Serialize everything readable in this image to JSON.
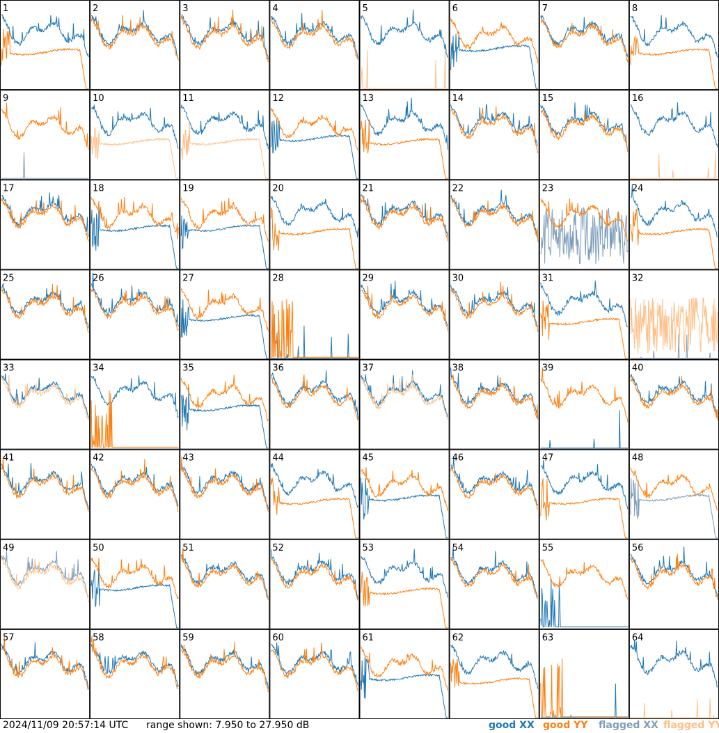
{
  "timestamp": "2024/11/09 20:57:14 UTC",
  "range_text": "range shown: 7.950 to 27.950 dB",
  "legend": [
    {
      "label": "good XX",
      "color": "#1f77b4"
    },
    {
      "label": "good YY",
      "color": "#ff7f0e"
    },
    {
      "label": "flagged XX",
      "color": "#7f9db9"
    },
    {
      "label": "flagged YY",
      "color": "#ffbf87"
    }
  ],
  "chart_data": {
    "type": "line",
    "title": "",
    "ylim_db": [
      7.95,
      27.95
    ],
    "grid": "8x8 small multiples",
    "tiles": [
      {
        "id": "1",
        "xx": "good",
        "yy": "good",
        "xx_shape": "normal",
        "yy_shape": "low"
      },
      {
        "id": "2",
        "xx": "good",
        "yy": "good",
        "xx_shape": "normal",
        "yy_shape": "normal"
      },
      {
        "id": "3",
        "xx": "good",
        "yy": "good",
        "xx_shape": "normal",
        "yy_shape": "normal"
      },
      {
        "id": "4",
        "xx": "good",
        "yy": "good",
        "xx_shape": "normal",
        "yy_shape": "normal"
      },
      {
        "id": "5",
        "xx": "good",
        "yy": "flagged",
        "xx_shape": "normal",
        "yy_shape": "dead"
      },
      {
        "id": "6",
        "xx": "good",
        "yy": "good",
        "xx_shape": "low",
        "yy_shape": "normal"
      },
      {
        "id": "7",
        "xx": "good",
        "yy": "good",
        "xx_shape": "normal",
        "yy_shape": "normal"
      },
      {
        "id": "8",
        "xx": "good",
        "yy": "good",
        "xx_shape": "normal",
        "yy_shape": "low"
      },
      {
        "id": "9",
        "xx": "flagged",
        "yy": "good",
        "xx_shape": "dead",
        "yy_shape": "normal"
      },
      {
        "id": "10",
        "xx": "good",
        "yy": "flagged",
        "xx_shape": "normal",
        "yy_shape": "low"
      },
      {
        "id": "11",
        "xx": "good",
        "yy": "flagged",
        "xx_shape": "normal",
        "yy_shape": "low"
      },
      {
        "id": "12",
        "xx": "good",
        "yy": "good",
        "xx_shape": "low",
        "yy_shape": "normal"
      },
      {
        "id": "13",
        "xx": "good",
        "yy": "good",
        "xx_shape": "normal",
        "yy_shape": "low"
      },
      {
        "id": "14",
        "xx": "good",
        "yy": "good",
        "xx_shape": "normal",
        "yy_shape": "normal"
      },
      {
        "id": "15",
        "xx": "good",
        "yy": "good",
        "xx_shape": "normal",
        "yy_shape": "normal"
      },
      {
        "id": "16",
        "xx": "good",
        "yy": "flagged",
        "xx_shape": "normal",
        "yy_shape": "dead"
      },
      {
        "id": "17",
        "xx": "good",
        "yy": "good",
        "xx_shape": "normal",
        "yy_shape": "normal"
      },
      {
        "id": "18",
        "xx": "good",
        "yy": "good",
        "xx_shape": "low",
        "yy_shape": "normal"
      },
      {
        "id": "19",
        "xx": "good",
        "yy": "good",
        "xx_shape": "low",
        "yy_shape": "normal"
      },
      {
        "id": "20",
        "xx": "good",
        "yy": "good",
        "xx_shape": "normal",
        "yy_shape": "low"
      },
      {
        "id": "21",
        "xx": "good",
        "yy": "good",
        "xx_shape": "normal",
        "yy_shape": "normal"
      },
      {
        "id": "22",
        "xx": "good",
        "yy": "good",
        "xx_shape": "normal",
        "yy_shape": "normal"
      },
      {
        "id": "23",
        "xx": "flagged",
        "yy": "good",
        "xx_shape": "noisy",
        "yy_shape": "normal"
      },
      {
        "id": "24",
        "xx": "good",
        "yy": "good",
        "xx_shape": "normal",
        "yy_shape": "low"
      },
      {
        "id": "25",
        "xx": "good",
        "yy": "good",
        "xx_shape": "normal",
        "yy_shape": "normal"
      },
      {
        "id": "26",
        "xx": "good",
        "yy": "good",
        "xx_shape": "normal",
        "yy_shape": "normal"
      },
      {
        "id": "27",
        "xx": "good",
        "yy": "good",
        "xx_shape": "low",
        "yy_shape": "normal"
      },
      {
        "id": "28",
        "xx": "good",
        "yy": "good",
        "xx_shape": "dead",
        "yy_shape": "spiky"
      },
      {
        "id": "29",
        "xx": "good",
        "yy": "good",
        "xx_shape": "normal",
        "yy_shape": "normal"
      },
      {
        "id": "30",
        "xx": "good",
        "yy": "good",
        "xx_shape": "normal",
        "yy_shape": "normal"
      },
      {
        "id": "31",
        "xx": "good",
        "yy": "good",
        "xx_shape": "normal",
        "yy_shape": "low"
      },
      {
        "id": "32",
        "xx": "flagged",
        "yy": "flagged",
        "xx_shape": "dead",
        "yy_shape": "noisy"
      },
      {
        "id": "33",
        "xx": "good",
        "yy": "flagged",
        "xx_shape": "normal",
        "yy_shape": "normal"
      },
      {
        "id": "34",
        "xx": "good",
        "yy": "good",
        "xx_shape": "normal",
        "yy_shape": "spiky"
      },
      {
        "id": "35",
        "xx": "good",
        "yy": "good",
        "xx_shape": "low",
        "yy_shape": "normal"
      },
      {
        "id": "36",
        "xx": "good",
        "yy": "good",
        "xx_shape": "normal",
        "yy_shape": "normal"
      },
      {
        "id": "37",
        "xx": "good",
        "yy": "flagged",
        "xx_shape": "normal",
        "yy_shape": "normal"
      },
      {
        "id": "38",
        "xx": "good",
        "yy": "good",
        "xx_shape": "normal",
        "yy_shape": "normal"
      },
      {
        "id": "39",
        "xx": "good",
        "yy": "good",
        "xx_shape": "dead",
        "yy_shape": "normal"
      },
      {
        "id": "40",
        "xx": "good",
        "yy": "good",
        "xx_shape": "normal",
        "yy_shape": "normal"
      },
      {
        "id": "41",
        "xx": "good",
        "yy": "good",
        "xx_shape": "normal",
        "yy_shape": "normal"
      },
      {
        "id": "42",
        "xx": "good",
        "yy": "good",
        "xx_shape": "normal",
        "yy_shape": "normal"
      },
      {
        "id": "43",
        "xx": "good",
        "yy": "good",
        "xx_shape": "normal",
        "yy_shape": "normal"
      },
      {
        "id": "44",
        "xx": "good",
        "yy": "good",
        "xx_shape": "normal",
        "yy_shape": "low"
      },
      {
        "id": "45",
        "xx": "good",
        "yy": "good",
        "xx_shape": "low",
        "yy_shape": "normal"
      },
      {
        "id": "46",
        "xx": "good",
        "yy": "good",
        "xx_shape": "normal",
        "yy_shape": "normal"
      },
      {
        "id": "47",
        "xx": "good",
        "yy": "good",
        "xx_shape": "normal",
        "yy_shape": "low"
      },
      {
        "id": "48",
        "xx": "flagged",
        "yy": "good",
        "xx_shape": "low",
        "yy_shape": "normal"
      },
      {
        "id": "49",
        "xx": "flagged",
        "yy": "flagged",
        "xx_shape": "normal",
        "yy_shape": "normal"
      },
      {
        "id": "50",
        "xx": "good",
        "yy": "good",
        "xx_shape": "low",
        "yy_shape": "normal"
      },
      {
        "id": "51",
        "xx": "good",
        "yy": "good",
        "xx_shape": "normal",
        "yy_shape": "normal"
      },
      {
        "id": "52",
        "xx": "good",
        "yy": "good",
        "xx_shape": "normal",
        "yy_shape": "normal"
      },
      {
        "id": "53",
        "xx": "good",
        "yy": "good",
        "xx_shape": "normal",
        "yy_shape": "low"
      },
      {
        "id": "54",
        "xx": "good",
        "yy": "good",
        "xx_shape": "normal",
        "yy_shape": "normal"
      },
      {
        "id": "55",
        "xx": "good",
        "yy": "good",
        "xx_shape": "spiky",
        "yy_shape": "normal"
      },
      {
        "id": "56",
        "xx": "good",
        "yy": "good",
        "xx_shape": "normal",
        "yy_shape": "normal"
      },
      {
        "id": "57",
        "xx": "good",
        "yy": "good",
        "xx_shape": "normal",
        "yy_shape": "normal"
      },
      {
        "id": "58",
        "xx": "good",
        "yy": "good",
        "xx_shape": "normal",
        "yy_shape": "normal"
      },
      {
        "id": "59",
        "xx": "good",
        "yy": "good",
        "xx_shape": "normal",
        "yy_shape": "normal"
      },
      {
        "id": "60",
        "xx": "good",
        "yy": "good",
        "xx_shape": "normal",
        "yy_shape": "normal"
      },
      {
        "id": "61",
        "xx": "good",
        "yy": "good",
        "xx_shape": "low",
        "yy_shape": "normal"
      },
      {
        "id": "62",
        "xx": "good",
        "yy": "good",
        "xx_shape": "normal",
        "yy_shape": "low"
      },
      {
        "id": "63",
        "xx": "good",
        "yy": "good",
        "xx_shape": "dead",
        "yy_shape": "spiky"
      },
      {
        "id": "64",
        "xx": "good",
        "yy": "flagged",
        "xx_shape": "normal",
        "yy_shape": "dead"
      }
    ]
  }
}
